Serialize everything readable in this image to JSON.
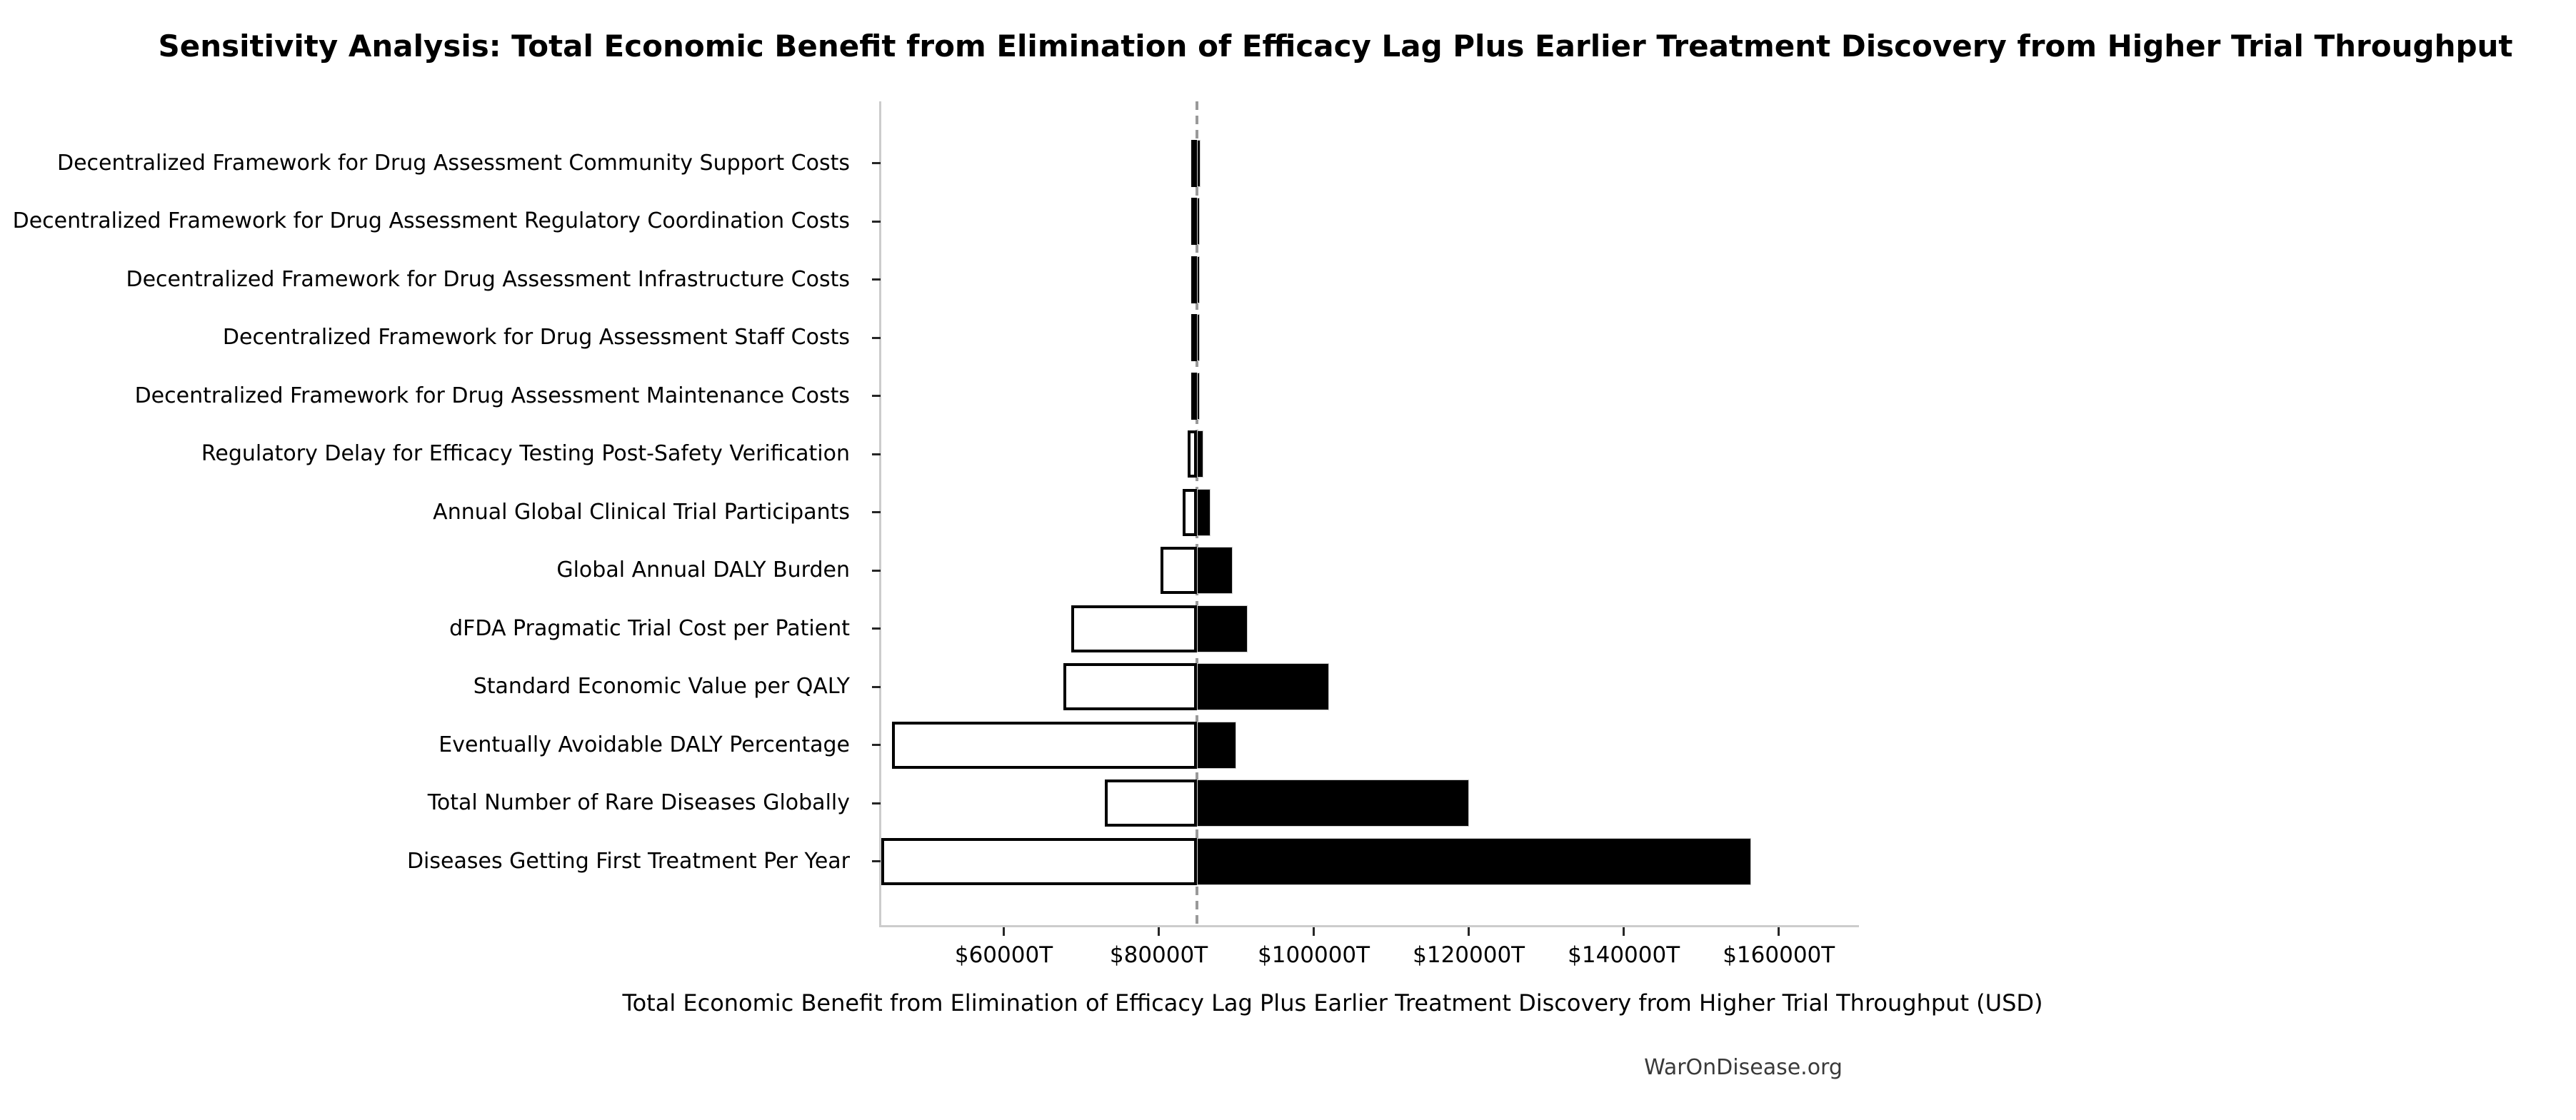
{
  "chart_data": {
    "type": "bar",
    "orientation": "horizontal",
    "variant": "tornado_sensitivity",
    "title": "Sensitivity Analysis: Total Economic Benefit from Elimination of Efficacy Lag Plus Earlier Treatment Discovery from Higher Trial Throughput",
    "xlabel": "Total Economic Benefit from Elimination of Efficacy Lag Plus Earlier Treatment Discovery from Higher Trial Throughput (USD)",
    "watermark": "WarOnDisease.org",
    "unit": "trillions USD (T)",
    "baseline_value_T": 84900,
    "xlim_T": [
      44100,
      170100
    ],
    "x_tick_values_T": [
      60000,
      80000,
      100000,
      120000,
      140000,
      160000
    ],
    "x_tick_labels": [
      "$60000T",
      "$80000T",
      "$100000T",
      "$120000T",
      "$140000T",
      "$160000T"
    ],
    "categories": [
      "Decentralized Framework for Drug Assessment Community Support Costs",
      "Decentralized Framework for Drug Assessment Regulatory Coordination Costs",
      "Decentralized Framework for Drug Assessment Infrastructure Costs",
      "Decentralized Framework for Drug Assessment Staff Costs",
      "Decentralized Framework for Drug Assessment Maintenance Costs",
      "Regulatory Delay for Efficacy Testing Post-Safety Verification",
      "Annual Global Clinical Trial Participants",
      "Global Annual DALY Burden",
      "dFDA Pragmatic Trial Cost per Patient",
      "Standard Economic Value per QALY",
      "Eventually Avoidable DALY Percentage",
      "Total Number of Rare Diseases Globally",
      "Diseases Getting First Treatment Per Year"
    ],
    "series": [
      {
        "name": "low_estimate",
        "values_T": [
          84600,
          84600,
          84600,
          84600,
          84700,
          83700,
          83100,
          80200,
          68700,
          67700,
          45600,
          73000,
          44200
        ]
      },
      {
        "name": "high_estimate",
        "values_T": [
          85400,
          85300,
          85300,
          85200,
          85200,
          85800,
          86700,
          89500,
          91500,
          102000,
          90000,
          120000,
          156400
        ]
      }
    ],
    "gridlines": false,
    "legend": false,
    "colors": {
      "bar_low_fill": "#ffffff",
      "bar_edge": "#000000",
      "bar_high_fill": "#000000",
      "bar_high_edge": "#cccccc",
      "baseline_line": "#999999",
      "spine": "#cccccc",
      "tick_mark": "#262626",
      "text": "#000000",
      "watermark_text": "#3a3a3a"
    }
  }
}
